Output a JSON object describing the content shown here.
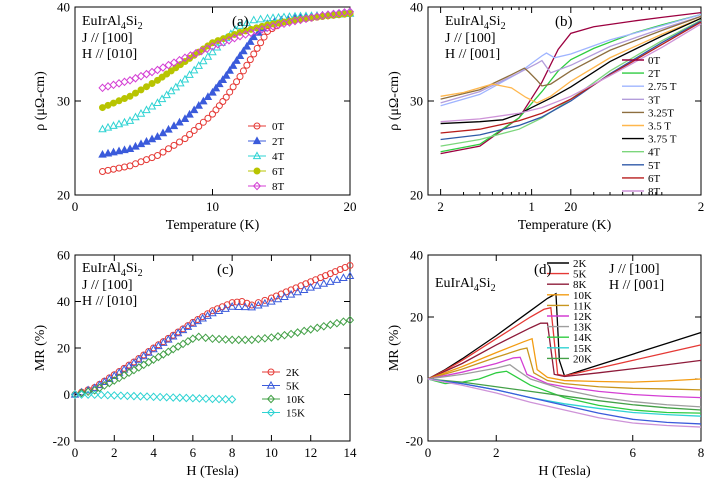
{
  "chart_data": [
    {
      "type": "scatter",
      "panel_label": "(a)",
      "annotation": [
        "EuIrAl4Si2",
        "J // [100]",
        "H // [010]"
      ],
      "xlabel": "Temperature (K)",
      "ylabel": "ρ (μΩ-cm)",
      "xlim": [
        0,
        20
      ],
      "ylim": [
        20,
        40
      ],
      "xticks": [
        "0",
        "10",
        "20"
      ],
      "yticks": [
        "20",
        "30",
        "40"
      ],
      "legend": "right-center",
      "series": [
        {
          "name": "0T",
          "color": "#e53935",
          "marker": "circle-open",
          "x": [
            2,
            4,
            6,
            8,
            10,
            11,
            12,
            13,
            14,
            15,
            16,
            18,
            20
          ],
          "y": [
            22.5,
            23.1,
            24.2,
            26.0,
            28.6,
            30.4,
            32.6,
            35.0,
            37.4,
            38.3,
            38.6,
            39.0,
            39.3
          ]
        },
        {
          "name": "2T",
          "color": "#3b5bdb",
          "marker": "triangle-filled",
          "x": [
            2,
            4,
            6,
            8,
            10,
            11,
            12,
            13,
            14,
            15,
            16,
            18,
            20
          ],
          "y": [
            24.3,
            24.9,
            26.2,
            28.1,
            30.9,
            32.7,
            34.8,
            36.8,
            38.2,
            38.6,
            38.8,
            39.1,
            39.3
          ]
        },
        {
          "name": "4T",
          "color": "#2fd3d3",
          "marker": "triangle-open",
          "x": [
            2,
            4,
            6,
            8,
            10,
            11,
            12,
            13,
            14,
            16,
            18,
            20
          ],
          "y": [
            27.0,
            27.9,
            29.8,
            32.3,
            35.2,
            36.7,
            38.0,
            38.6,
            38.8,
            39.0,
            39.1,
            39.3
          ]
        },
        {
          "name": "6T",
          "color": "#b8c400",
          "marker": "circle-filled",
          "x": [
            2,
            4,
            6,
            8,
            10,
            12,
            14,
            16,
            18,
            20
          ],
          "y": [
            29.3,
            30.5,
            32.2,
            34.2,
            36.2,
            37.3,
            38.1,
            38.6,
            39.0,
            39.3
          ]
        },
        {
          "name": "8T",
          "color": "#d43fd4",
          "marker": "diamond-open",
          "x": [
            2,
            4,
            6,
            8,
            10,
            12,
            14,
            16,
            18,
            20
          ],
          "y": [
            31.4,
            32.2,
            33.3,
            34.6,
            35.8,
            36.9,
            37.8,
            38.5,
            39.1,
            39.5
          ]
        }
      ]
    },
    {
      "type": "line",
      "panel_label": "(b)",
      "annotation": [
        "EuIrAl4Si2",
        "J // [100]",
        "H // [001]"
      ],
      "xlabel": "Temperature (K)",
      "ylabel": "ρ (μΩ-cm)",
      "xscale": "log",
      "xlim": [
        1.6,
        200
      ],
      "ylim": [
        20,
        40
      ],
      "xticks": [
        "2",
        "1",
        "20",
        "2"
      ],
      "yticks": [
        "20",
        "30",
        "40"
      ],
      "legend": "right-center",
      "series": [
        {
          "name": "0T",
          "color": "#9c0040",
          "x": [
            2,
            4,
            8,
            12,
            16,
            20,
            30,
            60,
            100,
            200
          ],
          "y": [
            24.4,
            25.2,
            28.2,
            32.0,
            35.5,
            37.2,
            37.9,
            38.5,
            38.9,
            39.4
          ]
        },
        {
          "name": "2T",
          "color": "#2ecc40",
          "x": [
            2,
            4,
            8,
            12,
            16,
            20,
            30,
            60,
            100,
            200
          ],
          "y": [
            24.6,
            25.4,
            28.2,
            31.0,
            33.2,
            34.4,
            35.6,
            37.2,
            38.1,
            39.2
          ]
        },
        {
          "name": "2.75 T",
          "color": "#9fb4ff",
          "x": [
            2,
            4,
            8,
            10,
            12,
            13,
            15,
            20,
            40,
            100,
            200
          ],
          "y": [
            29.5,
            30.7,
            33.0,
            34.0,
            34.8,
            35.1,
            34.6,
            35.0,
            36.5,
            38.0,
            39.2
          ]
        },
        {
          "name": "3T",
          "color": "#b39ddb",
          "x": [
            2,
            4,
            8,
            11,
            12,
            14,
            20,
            40,
            100,
            200
          ],
          "y": [
            29.8,
            31.0,
            33.0,
            34.0,
            34.3,
            33.0,
            33.8,
            35.8,
            37.7,
            39.0
          ]
        },
        {
          "name": "3.25T",
          "color": "#8d6e3f",
          "x": [
            2,
            4,
            7,
            8.8,
            9.5,
            11,
            12,
            14,
            20,
            40,
            100,
            200
          ],
          "y": [
            30.2,
            31.2,
            32.8,
            33.5,
            33.1,
            32.2,
            31.6,
            31.8,
            33.2,
            35.4,
            37.5,
            39.0
          ]
        },
        {
          "name": "3.5 T",
          "color": "#ffb74d",
          "x": [
            2,
            3,
            5,
            7,
            9,
            11,
            14,
            20,
            40,
            100,
            200
          ],
          "y": [
            30.5,
            30.9,
            31.8,
            31.4,
            30.4,
            29.8,
            30.5,
            32.1,
            34.6,
            37.1,
            38.8
          ]
        },
        {
          "name": "3.75 T",
          "color": "#000000",
          "x": [
            2,
            4,
            6,
            8,
            10,
            14,
            20,
            40,
            100,
            200
          ],
          "y": [
            27.6,
            27.8,
            28.0,
            28.6,
            29.3,
            30.3,
            31.5,
            34.2,
            36.9,
            38.8
          ]
        },
        {
          "name": "4T",
          "color": "#7cd67c",
          "x": [
            2,
            4,
            8,
            12,
            20,
            40,
            100,
            200
          ],
          "y": [
            25.2,
            25.9,
            27.0,
            28.2,
            30.2,
            33.2,
            36.4,
            38.6
          ]
        },
        {
          "name": "5T",
          "color": "#2f5aa8",
          "x": [
            2,
            4,
            8,
            12,
            20,
            40,
            100,
            200
          ],
          "y": [
            25.9,
            26.4,
            27.4,
            28.3,
            30.0,
            32.9,
            36.2,
            38.5
          ]
        },
        {
          "name": "6T",
          "color": "#b71c1c",
          "x": [
            2,
            4,
            8,
            12,
            20,
            40,
            100,
            200
          ],
          "y": [
            26.6,
            27.0,
            27.9,
            28.7,
            30.2,
            32.8,
            36.0,
            38.4
          ]
        },
        {
          "name": "8T",
          "color": "#ce93d8",
          "x": [
            2,
            4,
            8,
            12,
            20,
            40,
            100,
            200
          ],
          "y": [
            27.8,
            28.1,
            28.7,
            29.3,
            30.5,
            32.7,
            35.7,
            38.2
          ]
        }
      ]
    },
    {
      "type": "scatter",
      "panel_label": "(c)",
      "annotation": [
        "EuIrAl4Si2",
        "J // [100]",
        "H // [010]"
      ],
      "xlabel": "H (Tesla)",
      "ylabel": "MR (%)",
      "xlim": [
        0,
        14
      ],
      "ylim": [
        -20,
        60
      ],
      "xticks": [
        "0",
        "2",
        "4",
        "6",
        "8",
        "10",
        "12",
        "14"
      ],
      "yticks": [
        "-20",
        "0",
        "20",
        "40",
        "60"
      ],
      "legend": "right-center",
      "series": [
        {
          "name": "2K",
          "color": "#e53935",
          "marker": "circle-open",
          "x": [
            0,
            1,
            2,
            3,
            4,
            5,
            6,
            7,
            8,
            8.5,
            9,
            10,
            11,
            12,
            13,
            14
          ],
          "y": [
            0,
            3,
            8.5,
            14,
            20,
            25.5,
            31,
            36,
            39.5,
            40,
            38.5,
            41.5,
            45,
            48.5,
            52,
            55.5
          ]
        },
        {
          "name": "5K",
          "color": "#3b5bdb",
          "marker": "triangle-open",
          "x": [
            0,
            1,
            2,
            3,
            4,
            5,
            6,
            7,
            8,
            9,
            10,
            11,
            12,
            13,
            14
          ],
          "y": [
            0,
            2.8,
            8,
            13.5,
            19.5,
            25,
            30.5,
            35,
            37.8,
            37.5,
            40,
            43,
            46,
            48.5,
            51
          ]
        },
        {
          "name": "10K",
          "color": "#43a047",
          "marker": "diamond-open",
          "x": [
            0,
            1,
            2,
            3,
            4,
            5,
            6,
            6.3,
            7,
            8,
            9,
            10,
            11,
            12,
            13,
            14
          ],
          "y": [
            0,
            1.8,
            6,
            10.5,
            15,
            19.5,
            24,
            24.8,
            24,
            23.5,
            23.5,
            24.5,
            26,
            28,
            30,
            32
          ]
        },
        {
          "name": "15K",
          "color": "#2fd3d3",
          "marker": "diamond-open",
          "x": [
            0,
            1,
            2,
            3,
            4,
            5,
            6,
            7,
            8
          ],
          "y": [
            0,
            -0.1,
            -0.4,
            -0.7,
            -1.0,
            -1.3,
            -1.6,
            -1.9,
            -2.1
          ]
        }
      ]
    },
    {
      "type": "line",
      "panel_label": "(d)",
      "annotation": [
        "EuIrAl4Si2",
        "J // [100]",
        "H // [001]"
      ],
      "xlabel": "H (Tesla)",
      "ylabel": "MR (%)",
      "xlim": [
        0,
        8
      ],
      "ylim": [
        -20,
        40
      ],
      "xticks": [
        "0",
        "2",
        "6",
        "8"
      ],
      "yticks": [
        "-20",
        "0",
        "20",
        "40"
      ],
      "legend": "top-center",
      "series": [
        {
          "name": "2K",
          "color": "#000000",
          "x": [
            0,
            0.5,
            1,
            2,
            3,
            3.5,
            3.75,
            3.85,
            4,
            5,
            6,
            7,
            8
          ],
          "y": [
            0,
            3,
            6.5,
            14,
            22,
            26,
            27.5,
            6,
            1,
            4.5,
            8,
            11.5,
            15
          ]
        },
        {
          "name": "5K",
          "color": "#e53935",
          "x": [
            0,
            0.5,
            1,
            2,
            3,
            3.4,
            3.6,
            3.8,
            4,
            5,
            6,
            7,
            8
          ],
          "y": [
            0,
            2.8,
            6,
            13,
            20,
            22.5,
            23,
            1.5,
            1,
            3.5,
            6,
            8.5,
            11
          ]
        },
        {
          "name": "8K",
          "color": "#8e1b3a",
          "x": [
            0,
            1,
            2,
            3,
            3.3,
            3.5,
            3.7,
            4,
            5,
            6,
            7,
            8
          ],
          "y": [
            0,
            5,
            11,
            16.5,
            18,
            18,
            1.5,
            0.8,
            2,
            3.3,
            4.6,
            6
          ]
        },
        {
          "name": "10K",
          "color": "#f39c12",
          "x": [
            0,
            1,
            2,
            2.8,
            3.05,
            3.2,
            3.5,
            4,
            5,
            6,
            7,
            8
          ],
          "y": [
            0,
            4,
            8.5,
            12,
            13,
            3,
            0.5,
            -0.5,
            -0.8,
            -1.0,
            -0.6,
            0
          ]
        },
        {
          "name": "11K",
          "color": "#c8961f",
          "x": [
            0,
            1,
            2,
            2.7,
            2.9,
            3.1,
            3.5,
            4,
            5,
            6,
            7,
            8
          ],
          "y": [
            0,
            3.2,
            7,
            9.5,
            10,
            2,
            -0.5,
            -1.5,
            -2.5,
            -3.0,
            -3.2,
            -3.5
          ]
        },
        {
          "name": "12K",
          "color": "#d43fd4",
          "x": [
            0,
            1,
            2,
            2.5,
            2.7,
            2.9,
            3.5,
            4,
            5,
            6,
            7,
            8
          ],
          "y": [
            0,
            2.2,
            5,
            6.8,
            7,
            1.5,
            -1.5,
            -2.5,
            -4.0,
            -5.0,
            -5.6,
            -6
          ]
        },
        {
          "name": "13K",
          "color": "#9e9e9e",
          "x": [
            0,
            1,
            2,
            2.4,
            2.6,
            3,
            4,
            5,
            6,
            7,
            8
          ],
          "y": [
            0,
            1.5,
            3.5,
            4.6,
            3,
            0,
            -3.5,
            -5.8,
            -7.3,
            -8.3,
            -9
          ]
        },
        {
          "name": "14K",
          "color": "#2ecc40",
          "x": [
            0,
            0.5,
            1,
            1.5,
            2,
            2.3,
            3,
            4,
            5,
            6,
            7,
            8
          ],
          "y": [
            0,
            -1.5,
            -1,
            0,
            2,
            2.5,
            -2,
            -6,
            -8.5,
            -10,
            -10.8,
            -11
          ]
        },
        {
          "name": "15K",
          "color": "#2fd3d3",
          "x": [
            0,
            1,
            2,
            3,
            4,
            5,
            6,
            7,
            8
          ],
          "y": [
            0,
            -1.5,
            -3.5,
            -6.0,
            -8.0,
            -9.5,
            -10.8,
            -11.5,
            -12
          ]
        },
        {
          "name": "20K",
          "color": "#43a047",
          "x": [
            0,
            1,
            2,
            3,
            4,
            5,
            6,
            7,
            8
          ],
          "y": [
            0,
            -1,
            -2.5,
            -4,
            -5.5,
            -7,
            -8.3,
            -9.3,
            -10
          ]
        },
        {
          "name": "",
          "color": "#3b5bdb",
          "x": [
            0,
            1,
            2,
            3,
            4,
            5,
            6,
            7,
            8
          ],
          "y": [
            0,
            -1.5,
            -3.5,
            -6,
            -8.5,
            -11,
            -13,
            -14,
            -14.5
          ]
        },
        {
          "name": "",
          "color": "#ce93d8",
          "x": [
            0,
            1,
            2,
            3,
            4,
            5,
            6,
            7,
            8
          ],
          "y": [
            0,
            -2,
            -4.5,
            -7.5,
            -10,
            -12.5,
            -14.2,
            -15,
            -15.5
          ]
        }
      ]
    }
  ]
}
